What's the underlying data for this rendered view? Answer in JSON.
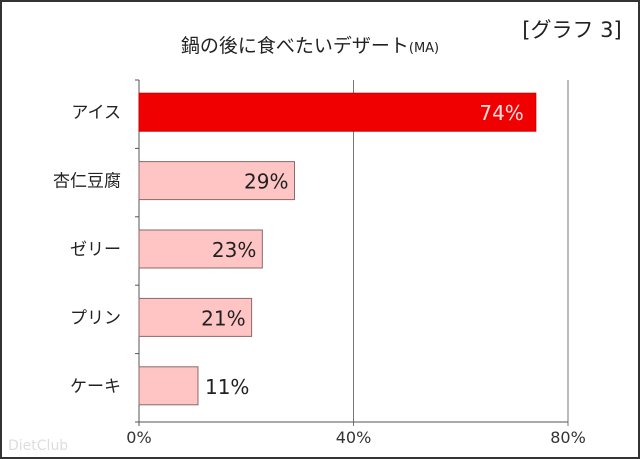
{
  "chart_data": {
    "type": "bar",
    "orientation": "horizontal",
    "title": "鍋の後に食べたいデザート",
    "title_suffix": "(MA)",
    "tag": "[グラフ 3]",
    "categories": [
      "アイス",
      "杏仁豆腐",
      "ゼリー",
      "プリン",
      "ケーキ"
    ],
    "values": [
      74,
      29,
      23,
      21,
      11
    ],
    "data_labels": [
      "74%",
      "29%",
      "23%",
      "21%",
      "11%"
    ],
    "xlim": [
      0,
      80
    ],
    "xticks": [
      0,
      40,
      80
    ],
    "xtick_labels": [
      "0%",
      "40%",
      "80%"
    ],
    "grid": true,
    "colors": {
      "highlight": "#f00000",
      "bar": "#ffc4c4",
      "bar_border": "#8a6a6a",
      "highlight_label": "#ffe0e0",
      "label": "#222222"
    }
  },
  "watermark": "DietClub"
}
